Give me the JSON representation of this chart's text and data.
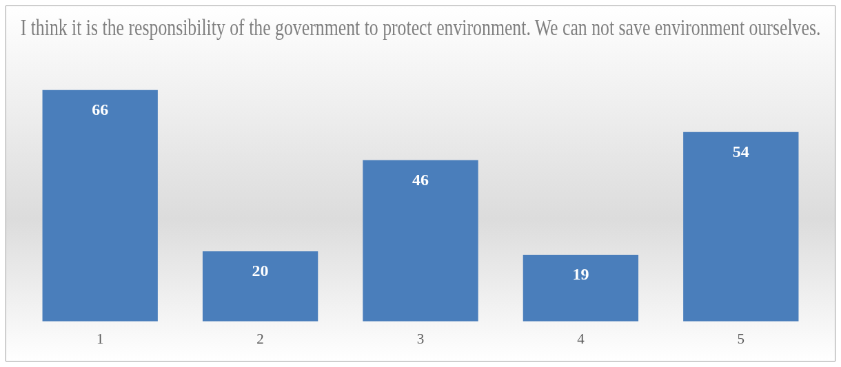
{
  "chart_data": {
    "type": "bar",
    "title": "I think it is the responsibility of the government to protect environment. We can not save environment ourselves.",
    "categories": [
      "1",
      "2",
      "3",
      "4",
      "5"
    ],
    "values": [
      66,
      20,
      46,
      19,
      54
    ],
    "color": "#4a7ebb",
    "data_labels": true,
    "grid": false,
    "legend": false
  }
}
